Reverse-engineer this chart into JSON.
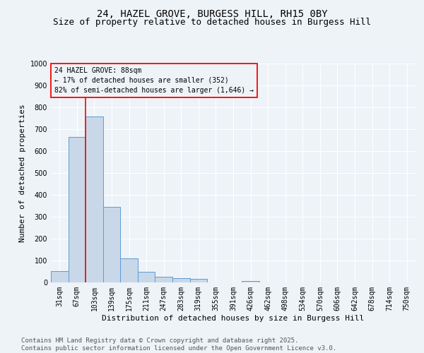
{
  "title_line1": "24, HAZEL GROVE, BURGESS HILL, RH15 0BY",
  "title_line2": "Size of property relative to detached houses in Burgess Hill",
  "xlabel": "Distribution of detached houses by size in Burgess Hill",
  "ylabel": "Number of detached properties",
  "bar_labels": [
    "31sqm",
    "67sqm",
    "103sqm",
    "139sqm",
    "175sqm",
    "211sqm",
    "247sqm",
    "283sqm",
    "319sqm",
    "355sqm",
    "391sqm",
    "426sqm",
    "462sqm",
    "498sqm",
    "534sqm",
    "570sqm",
    "606sqm",
    "642sqm",
    "678sqm",
    "714sqm",
    "750sqm"
  ],
  "bar_values": [
    53,
    665,
    757,
    345,
    110,
    50,
    27,
    20,
    15,
    0,
    0,
    8,
    0,
    0,
    0,
    0,
    0,
    0,
    0,
    0,
    0
  ],
  "bar_color": "#c8d8e8",
  "bar_edge_color": "#5b9bd5",
  "ylim": [
    0,
    1000
  ],
  "yticks": [
    0,
    100,
    200,
    300,
    400,
    500,
    600,
    700,
    800,
    900,
    1000
  ],
  "property_line_x": 1.5,
  "annotation_title": "24 HAZEL GROVE: 88sqm",
  "annotation_line2": "← 17% of detached houses are smaller (352)",
  "annotation_line3": "82% of semi-detached houses are larger (1,646) →",
  "footer_line1": "Contains HM Land Registry data © Crown copyright and database right 2025.",
  "footer_line2": "Contains public sector information licensed under the Open Government Licence v3.0.",
  "bg_color": "#eef3f8",
  "grid_color": "#ffffff",
  "title_fontsize": 10,
  "subtitle_fontsize": 9,
  "axis_label_fontsize": 8,
  "tick_fontsize": 7,
  "annotation_fontsize": 7,
  "footer_fontsize": 6.5
}
